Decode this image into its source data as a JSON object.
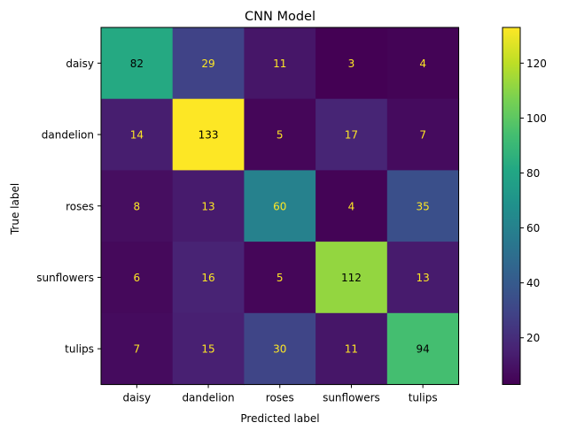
{
  "chart_data": {
    "type": "heatmap",
    "title": "CNN Model",
    "xlabel": "Predicted label",
    "ylabel": "True label",
    "x_categories": [
      "daisy",
      "dandelion",
      "roses",
      "sunflowers",
      "tulips"
    ],
    "y_categories": [
      "daisy",
      "dandelion",
      "roses",
      "sunflowers",
      "tulips"
    ],
    "values": [
      [
        82,
        29,
        11,
        3,
        4
      ],
      [
        14,
        133,
        5,
        17,
        7
      ],
      [
        8,
        13,
        60,
        4,
        35
      ],
      [
        6,
        16,
        5,
        112,
        13
      ],
      [
        7,
        15,
        30,
        11,
        94
      ]
    ],
    "colormap": "viridis",
    "color_range": [
      3,
      133
    ],
    "colorbar_ticks": [
      20,
      40,
      60,
      80,
      100,
      120
    ],
    "text_color_dark": "#000000",
    "text_color_light": "#fde725"
  }
}
